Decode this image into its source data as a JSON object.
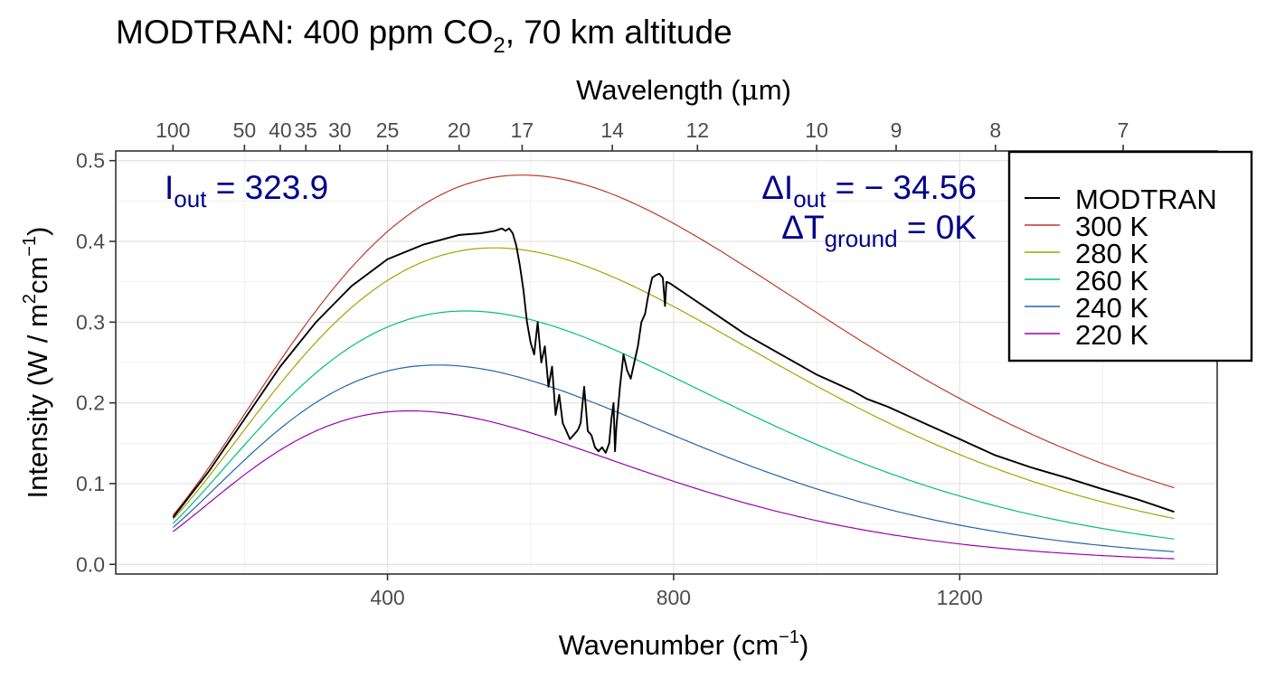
{
  "chart_data": {
    "type": "line",
    "title": "MODTRAN: 400 ppm CO",
    "title_sub": "2",
    "title_suffix": ", 70 km altitude",
    "xlabel": "Wavenumber (cm",
    "xlabel_sup": "−1",
    "xlabel_end": ")",
    "ylabel": "Intensity (W / m",
    "ylabel_sup1": "2",
    "ylabel_mid": "cm",
    "ylabel_sup2": "−1",
    "ylabel_end": ")",
    "top_axis_label": "Wavelength (",
    "top_axis_mu": "μ",
    "top_axis_label_end": "m)",
    "xlim": [
      20,
      1560
    ],
    "ylim": [
      -0.012,
      0.512
    ],
    "x_ticks": [
      400,
      800,
      1200
    ],
    "x_tick_labels": [
      "400",
      "800",
      "1200"
    ],
    "y_ticks": [
      0.0,
      0.1,
      0.2,
      0.3,
      0.4,
      0.5
    ],
    "y_tick_labels": [
      "0.0",
      "0.1",
      "0.2",
      "0.3",
      "0.4",
      "0.5"
    ],
    "top_ticks_um": [
      100,
      50,
      40,
      35,
      30,
      25,
      20,
      17,
      14,
      12,
      10,
      9,
      8,
      7
    ],
    "top_tick_labels": [
      "100",
      "50",
      "40",
      "35",
      "30",
      "25",
      "20",
      "17",
      "14",
      "12",
      "10",
      "9",
      "8",
      "7"
    ],
    "grid": true,
    "legend_position": "top-right",
    "legend": [
      {
        "label": "MODTRAN",
        "color": "#000000"
      },
      {
        "label": "300 K",
        "color": "#C0392B"
      },
      {
        "label": "280 K",
        "color": "#A3A500"
      },
      {
        "label": "260 K",
        "color": "#00BF7D"
      },
      {
        "label": "240 K",
        "color": "#2166AC"
      },
      {
        "label": "220 K",
        "color": "#9B00B0"
      }
    ],
    "planck_series": [
      {
        "name": "300 K",
        "temperature": 300,
        "color": "#C0392B"
      },
      {
        "name": "280 K",
        "temperature": 280,
        "color": "#A3A500"
      },
      {
        "name": "260 K",
        "temperature": 260,
        "color": "#00BF7D"
      },
      {
        "name": "240 K",
        "temperature": 240,
        "color": "#2166AC"
      },
      {
        "name": "220 K",
        "temperature": 220,
        "color": "#9B00B0"
      }
    ],
    "planck_x_range": [
      100,
      1500
    ],
    "modtran_series": {
      "name": "MODTRAN",
      "color": "#000000",
      "x": [
        100,
        150,
        200,
        250,
        300,
        350,
        400,
        450,
        500,
        530,
        550,
        560,
        565,
        570,
        575,
        580,
        585,
        590,
        595,
        600,
        605,
        610,
        615,
        620,
        625,
        630,
        635,
        640,
        645,
        650,
        655,
        660,
        665,
        667,
        670,
        675,
        680,
        685,
        690,
        695,
        700,
        705,
        710,
        713,
        716,
        718,
        720,
        725,
        730,
        735,
        740,
        745,
        750,
        755,
        760,
        765,
        770,
        775,
        780,
        785,
        788,
        790,
        795,
        800,
        850,
        900,
        950,
        1000,
        1050,
        1060,
        1070,
        1100,
        1150,
        1200,
        1250,
        1300,
        1350,
        1400,
        1450,
        1500
      ],
      "y": [
        0.058,
        0.115,
        0.18,
        0.245,
        0.3,
        0.345,
        0.378,
        0.396,
        0.408,
        0.41,
        0.413,
        0.416,
        0.413,
        0.416,
        0.41,
        0.395,
        0.37,
        0.34,
        0.3,
        0.275,
        0.26,
        0.3,
        0.25,
        0.27,
        0.22,
        0.245,
        0.185,
        0.21,
        0.175,
        0.165,
        0.155,
        0.16,
        0.165,
        0.168,
        0.175,
        0.22,
        0.165,
        0.16,
        0.145,
        0.14,
        0.145,
        0.138,
        0.15,
        0.18,
        0.2,
        0.14,
        0.17,
        0.22,
        0.26,
        0.24,
        0.23,
        0.25,
        0.27,
        0.3,
        0.31,
        0.335,
        0.355,
        0.358,
        0.36,
        0.355,
        0.32,
        0.35,
        0.348,
        0.345,
        0.315,
        0.285,
        0.26,
        0.235,
        0.215,
        0.21,
        0.205,
        0.195,
        0.175,
        0.155,
        0.135,
        0.12,
        0.107,
        0.093,
        0.08,
        0.065
      ]
    },
    "annotations": {
      "iout_label": "I",
      "iout_sub": "out",
      "iout_eq": " = 323.9",
      "delta_iout_label": "ΔI",
      "delta_iout_sub": "out",
      "delta_iout_eq": " = − 34.56",
      "delta_t_label": "ΔT",
      "delta_t_sub": "ground",
      "delta_t_eq": " = 0K",
      "color": "#00008B"
    }
  }
}
